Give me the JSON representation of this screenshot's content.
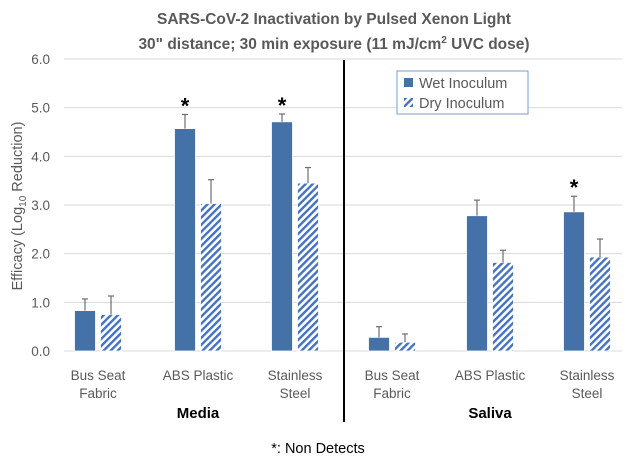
{
  "chart_data": {
    "type": "bar",
    "title_line1": "SARS-CoV-2 Inactivation by Pulsed Xenon Light",
    "title_line2_pre": "30\" distance; 30 min exposure (11 mJ/cm",
    "title_line2_sup": "2",
    "title_line2_post": " UVC dose)",
    "ylabel_pre": "Efficacy (Log",
    "ylabel_sub": "10",
    "ylabel_post": " Reduction)",
    "ylim": [
      0,
      6
    ],
    "yticks": [
      "0.0",
      "1.0",
      "2.0",
      "3.0",
      "4.0",
      "5.0",
      "6.0"
    ],
    "grid": true,
    "legend_placement": "top-right",
    "groups": [
      "Media",
      "Saliva"
    ],
    "categories": [
      {
        "line1": "Bus Seat",
        "line2": "Fabric"
      },
      {
        "line1": "ABS Plastic",
        "line2": ""
      },
      {
        "line1": "Stainless",
        "line2": "Steel"
      },
      {
        "line1": "Bus Seat",
        "line2": "Fabric"
      },
      {
        "line1": "ABS Plastic",
        "line2": ""
      },
      {
        "line1": "Stainless",
        "line2": "Steel"
      }
    ],
    "series": [
      {
        "name": "Wet Inoculum",
        "color": "#4472a8",
        "pattern": "solid",
        "values": [
          0.83,
          4.57,
          4.71,
          0.28,
          2.78,
          2.86
        ],
        "error_top": [
          1.07,
          4.86,
          4.87,
          0.5,
          3.1,
          3.18
        ],
        "non_detect": [
          false,
          true,
          true,
          false,
          false,
          true
        ]
      },
      {
        "name": "Dry Inoculum",
        "color": "#4472c4",
        "pattern": "hatch",
        "values": [
          0.75,
          3.03,
          3.45,
          0.18,
          1.82,
          1.93
        ],
        "error_top": [
          1.13,
          3.52,
          3.77,
          0.35,
          2.07,
          2.3
        ],
        "non_detect": [
          false,
          false,
          false,
          false,
          false,
          false
        ]
      }
    ],
    "non_detect_marker": "*",
    "footnote": "*: Non Detects"
  }
}
